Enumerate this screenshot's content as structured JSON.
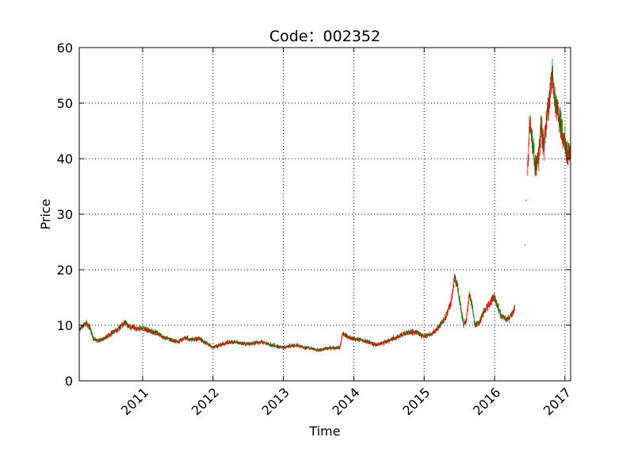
{
  "chart_data": {
    "type": "candlestick",
    "title": "Code：002352",
    "xlabel": "Time",
    "ylabel": "Price",
    "xlim": [
      2010.1,
      2017.08
    ],
    "ylim": [
      0,
      60
    ],
    "x_ticks": [
      2011,
      2012,
      2013,
      2014,
      2015,
      2016,
      2017
    ],
    "y_ticks": [
      0,
      10,
      20,
      30,
      40,
      50,
      60
    ],
    "grid": true,
    "colors": {
      "up": "#ff0000",
      "down": "#008000"
    },
    "price_path": [
      [
        2010.1,
        9.2
      ],
      [
        2010.15,
        9.8
      ],
      [
        2010.2,
        10.4
      ],
      [
        2010.25,
        9.6
      ],
      [
        2010.3,
        7.5
      ],
      [
        2010.38,
        7.2
      ],
      [
        2010.45,
        7.6
      ],
      [
        2010.55,
        8.5
      ],
      [
        2010.65,
        9.3
      ],
      [
        2010.75,
        10.5
      ],
      [
        2010.8,
        9.8
      ],
      [
        2010.9,
        9.5
      ],
      [
        2011.0,
        9.4
      ],
      [
        2011.1,
        9.0
      ],
      [
        2011.2,
        8.6
      ],
      [
        2011.3,
        7.8
      ],
      [
        2011.4,
        7.4
      ],
      [
        2011.5,
        7.0
      ],
      [
        2011.6,
        7.8
      ],
      [
        2011.7,
        7.4
      ],
      [
        2011.8,
        7.6
      ],
      [
        2011.9,
        6.8
      ],
      [
        2012.0,
        6.0
      ],
      [
        2012.1,
        6.5
      ],
      [
        2012.2,
        6.9
      ],
      [
        2012.3,
        7.0
      ],
      [
        2012.4,
        6.8
      ],
      [
        2012.5,
        6.6
      ],
      [
        2012.6,
        6.8
      ],
      [
        2012.7,
        7.0
      ],
      [
        2012.8,
        6.5
      ],
      [
        2012.9,
        6.2
      ],
      [
        2013.0,
        6.0
      ],
      [
        2013.1,
        6.3
      ],
      [
        2013.2,
        6.4
      ],
      [
        2013.3,
        6.0
      ],
      [
        2013.4,
        5.8
      ],
      [
        2013.5,
        5.5
      ],
      [
        2013.6,
        5.8
      ],
      [
        2013.7,
        5.9
      ],
      [
        2013.8,
        6.0
      ],
      [
        2013.84,
        8.5
      ],
      [
        2013.9,
        8.0
      ],
      [
        2014.0,
        7.5
      ],
      [
        2014.1,
        7.4
      ],
      [
        2014.2,
        7.0
      ],
      [
        2014.3,
        6.5
      ],
      [
        2014.4,
        6.8
      ],
      [
        2014.5,
        7.2
      ],
      [
        2014.6,
        7.8
      ],
      [
        2014.7,
        8.4
      ],
      [
        2014.8,
        8.8
      ],
      [
        2014.9,
        8.7
      ],
      [
        2015.0,
        8.0
      ],
      [
        2015.1,
        8.4
      ],
      [
        2015.2,
        9.5
      ],
      [
        2015.3,
        11.5
      ],
      [
        2015.38,
        14.0
      ],
      [
        2015.43,
        18.5
      ],
      [
        2015.47,
        17.0
      ],
      [
        2015.52,
        13.0
      ],
      [
        2015.56,
        10.0
      ],
      [
        2015.6,
        11.0
      ],
      [
        2015.64,
        15.5
      ],
      [
        2015.68,
        13.5
      ],
      [
        2015.72,
        10.0
      ],
      [
        2015.78,
        10.5
      ],
      [
        2015.85,
        12.5
      ],
      [
        2015.92,
        13.8
      ],
      [
        2016.0,
        15.2
      ],
      [
        2016.05,
        13.0
      ],
      [
        2016.1,
        11.5
      ],
      [
        2016.18,
        11.0
      ],
      [
        2016.25,
        12.0
      ],
      [
        2016.29,
        13.5
      ]
    ],
    "gap_points": [
      [
        2016.45,
        32.5
      ],
      [
        2016.43,
        24.5
      ]
    ],
    "price_path_2": [
      [
        2016.47,
        38.0
      ],
      [
        2016.5,
        47.0
      ],
      [
        2016.54,
        42.0
      ],
      [
        2016.58,
        38.5
      ],
      [
        2016.62,
        40.0
      ],
      [
        2016.66,
        46.0
      ],
      [
        2016.7,
        42.0
      ],
      [
        2016.74,
        48.0
      ],
      [
        2016.78,
        51.0
      ],
      [
        2016.82,
        55.0
      ],
      [
        2016.86,
        50.0
      ],
      [
        2016.9,
        48.5
      ],
      [
        2016.95,
        45.0
      ],
      [
        2017.0,
        42.5
      ],
      [
        2017.04,
        40.5
      ],
      [
        2017.08,
        41.0
      ]
    ]
  }
}
